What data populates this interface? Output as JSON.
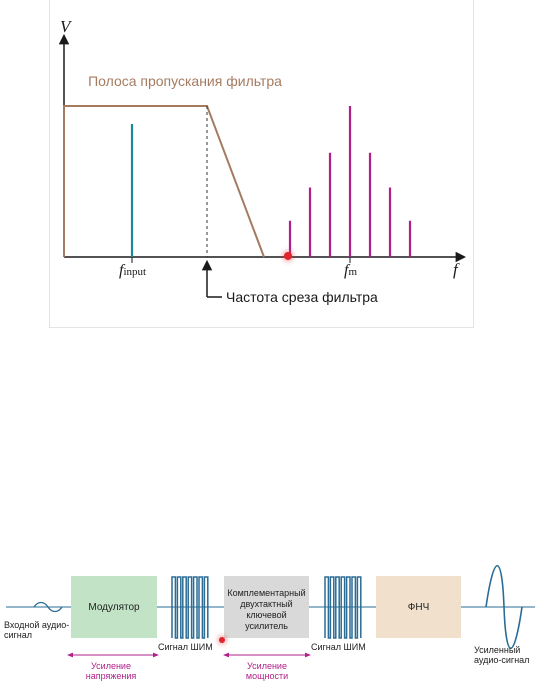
{
  "spectrum": {
    "y_axis_label": "V",
    "x_axis_label": "f",
    "passband_label": "Полоса пропускания фильтра",
    "cutoff_label": "Частота среза фильтра",
    "input_tone_label_main": "f",
    "input_tone_label_sub": "input",
    "pwm_tones_label_main": "f",
    "pwm_tones_label_sub": "m",
    "input_tone": {
      "relative_height": 1.0,
      "color": "#1a8a9a"
    },
    "pwm_harmonics": {
      "color": "#b0208a",
      "relative_heights": [
        0.24,
        0.46,
        0.69,
        1.0,
        0.69,
        0.46,
        0.24
      ]
    },
    "passband_color": "#a47b60"
  },
  "block_diagram": {
    "input_label": "Входной аудио-сигнал",
    "modulator_label": "Модулятор",
    "pwm_label_1": "Сигнал ШИМ",
    "amplifier_label": "Комплементарный двухтактный ключевой усилитель",
    "pwm_label_2": "Сигнал ШИМ",
    "lpf_label": "ФНЧ",
    "output_label": "Усиленный аудио-сигнал",
    "voltage_gain_label": "Усиление напряжения",
    "power_gain_label": "Усиление мощности",
    "modulator_color": "#c3e3c6",
    "amplifier_color": "#d9d9d9",
    "lpf_color": "#f1e1cc",
    "pwm_color": "#2a6c95",
    "signal_color": "#2a6c95",
    "gain_arrow_color": "#b0208a"
  }
}
